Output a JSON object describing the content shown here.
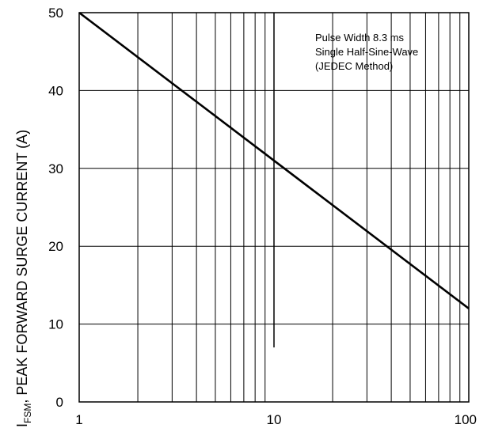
{
  "chart_data": {
    "type": "line",
    "xscale": "log",
    "xlim": [
      1,
      100
    ],
    "ylim": [
      0,
      50
    ],
    "x_ticks": [
      "1",
      "10",
      "100"
    ],
    "y_ticks": [
      "0",
      "10",
      "20",
      "30",
      "40",
      "50"
    ],
    "ylabel_main": "I",
    "ylabel_sub": "FSM",
    "ylabel_rest": ", PEAK FORWARD SURGE CURRENT (A)",
    "xlabel": "",
    "annotation": [
      "Pulse Width 8.3 ms",
      "Single Half-Sine-Wave",
      "(JEDEC Method)"
    ],
    "grid": true,
    "series": [
      {
        "x": [
          1,
          100
        ],
        "y": [
          50,
          12
        ]
      }
    ]
  }
}
